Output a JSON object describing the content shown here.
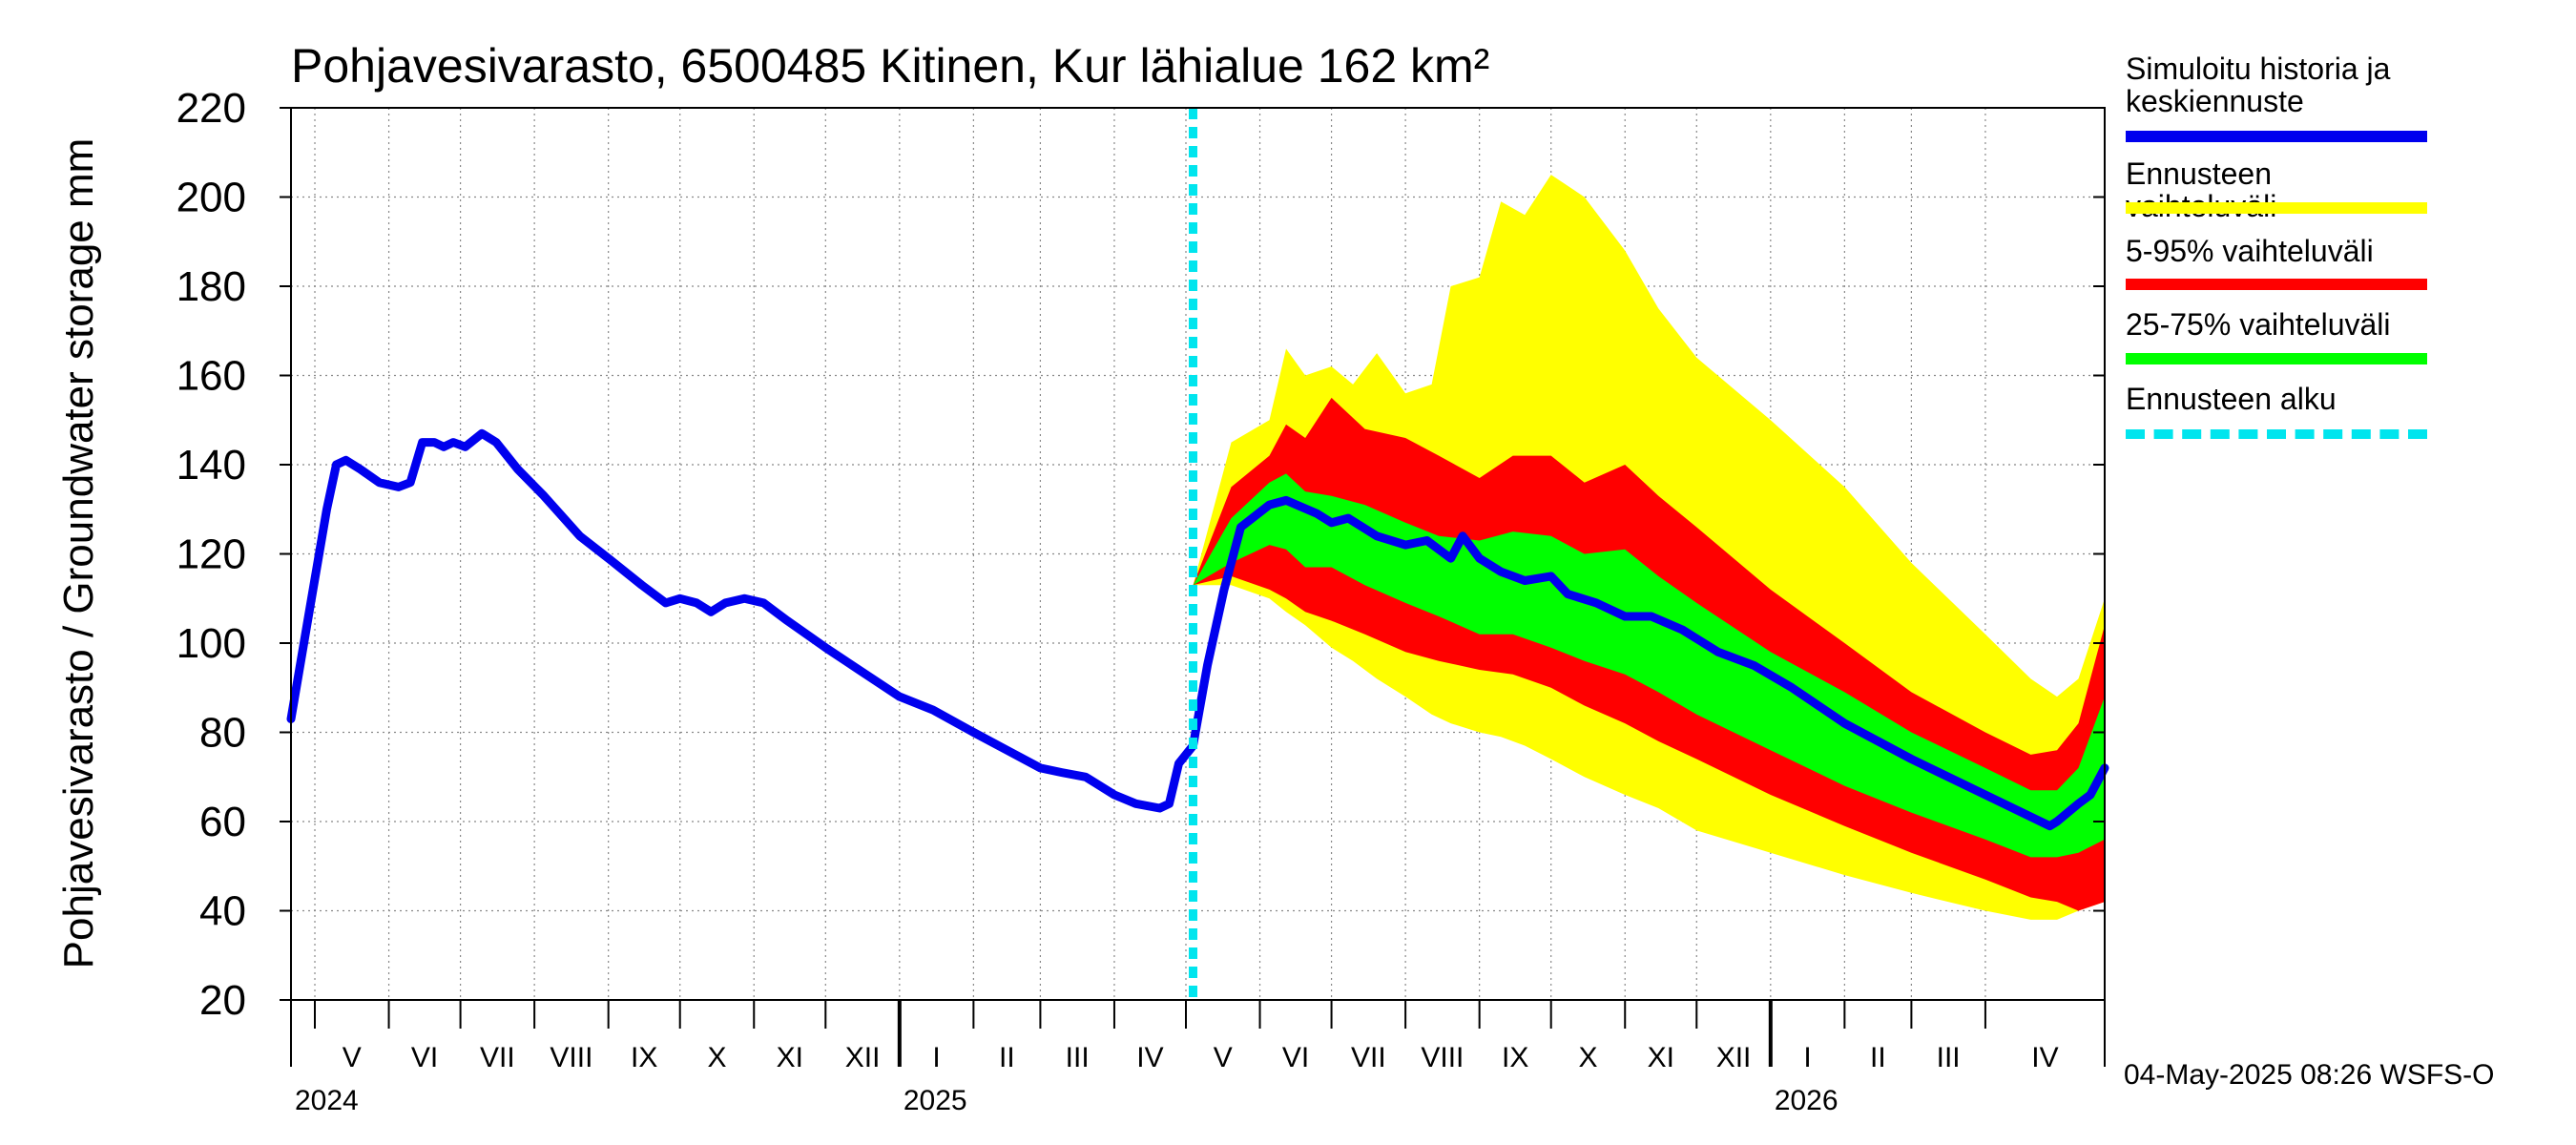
{
  "chart_data": {
    "type": "area",
    "title": "Pohjavesivarasto, 6500485 Kitinen, Kur lähialue 162 km²",
    "ylabel": "Pohjavesivarasto / Groundwater storage   mm",
    "ylim": [
      20,
      220
    ],
    "yticks": [
      20,
      40,
      60,
      80,
      100,
      120,
      140,
      160,
      180,
      200,
      220
    ],
    "grid": true,
    "legend_position": "right",
    "x_range": [
      "2024-04-21",
      "2026-05-21"
    ],
    "forecast_start": "2025-05-04",
    "month_labels": [
      {
        "label": "V",
        "date": "2024-05-01"
      },
      {
        "label": "VI",
        "date": "2024-06-01"
      },
      {
        "label": "VII",
        "date": "2024-07-01"
      },
      {
        "label": "VIII",
        "date": "2024-08-01"
      },
      {
        "label": "IX",
        "date": "2024-09-01"
      },
      {
        "label": "X",
        "date": "2024-10-01"
      },
      {
        "label": "XI",
        "date": "2024-11-01"
      },
      {
        "label": "XII",
        "date": "2024-12-01"
      },
      {
        "label": "I",
        "date": "2025-01-01"
      },
      {
        "label": "II",
        "date": "2025-02-01"
      },
      {
        "label": "III",
        "date": "2025-03-01"
      },
      {
        "label": "IV",
        "date": "2025-04-01"
      },
      {
        "label": "V",
        "date": "2025-05-01"
      },
      {
        "label": "VI",
        "date": "2025-06-01"
      },
      {
        "label": "VII",
        "date": "2025-07-01"
      },
      {
        "label": "VIII",
        "date": "2025-08-01"
      },
      {
        "label": "IX",
        "date": "2025-09-01"
      },
      {
        "label": "X",
        "date": "2025-10-01"
      },
      {
        "label": "XI",
        "date": "2025-11-01"
      },
      {
        "label": "XII",
        "date": "2025-12-01"
      },
      {
        "label": "I",
        "date": "2026-01-01"
      },
      {
        "label": "II",
        "date": "2026-02-01"
      },
      {
        "label": "III",
        "date": "2026-03-01"
      },
      {
        "label": "IV",
        "date": "2026-04-01"
      }
    ],
    "year_labels": [
      {
        "label": "2024",
        "date": "2024-04-21"
      },
      {
        "label": "2025",
        "date": "2025-01-01"
      },
      {
        "label": "2026",
        "date": "2026-01-01"
      }
    ],
    "series": [
      {
        "name": "Simuloitu historia ja keskiennuste",
        "color": "#0000ee",
        "points": [
          [
            "2024-04-21",
            83
          ],
          [
            "2024-04-28",
            105
          ],
          [
            "2024-05-06",
            130
          ],
          [
            "2024-05-10",
            140
          ],
          [
            "2024-05-14",
            141
          ],
          [
            "2024-05-20",
            139
          ],
          [
            "2024-05-28",
            136
          ],
          [
            "2024-06-05",
            135
          ],
          [
            "2024-06-10",
            136
          ],
          [
            "2024-06-15",
            145
          ],
          [
            "2024-06-20",
            145
          ],
          [
            "2024-06-24",
            144
          ],
          [
            "2024-06-28",
            145
          ],
          [
            "2024-07-03",
            144
          ],
          [
            "2024-07-10",
            147
          ],
          [
            "2024-07-16",
            145
          ],
          [
            "2024-07-25",
            139
          ],
          [
            "2024-08-05",
            133
          ],
          [
            "2024-08-20",
            124
          ],
          [
            "2024-09-01",
            119
          ],
          [
            "2024-09-15",
            113
          ],
          [
            "2024-09-25",
            109
          ],
          [
            "2024-10-01",
            110
          ],
          [
            "2024-10-08",
            109
          ],
          [
            "2024-10-14",
            107
          ],
          [
            "2024-10-20",
            109
          ],
          [
            "2024-10-28",
            110
          ],
          [
            "2024-11-05",
            109
          ],
          [
            "2024-11-15",
            105
          ],
          [
            "2024-12-01",
            99
          ],
          [
            "2024-12-15",
            94
          ],
          [
            "2025-01-01",
            88
          ],
          [
            "2025-01-15",
            85
          ],
          [
            "2025-02-01",
            80
          ],
          [
            "2025-02-15",
            76
          ],
          [
            "2025-03-01",
            72
          ],
          [
            "2025-03-10",
            71
          ],
          [
            "2025-03-20",
            70
          ],
          [
            "2025-04-01",
            66
          ],
          [
            "2025-04-10",
            64
          ],
          [
            "2025-04-20",
            63
          ],
          [
            "2025-04-24",
            64
          ],
          [
            "2025-04-28",
            73
          ],
          [
            "2025-05-04",
            77
          ],
          [
            "2025-05-10",
            95
          ],
          [
            "2025-05-17",
            112
          ],
          [
            "2025-05-24",
            126
          ],
          [
            "2025-06-05",
            131
          ],
          [
            "2025-06-12",
            132
          ],
          [
            "2025-06-25",
            129
          ],
          [
            "2025-07-01",
            127
          ],
          [
            "2025-07-08",
            128
          ],
          [
            "2025-07-20",
            124
          ],
          [
            "2025-08-01",
            122
          ],
          [
            "2025-08-10",
            123
          ],
          [
            "2025-08-20",
            119
          ],
          [
            "2025-08-25",
            124
          ],
          [
            "2025-09-01",
            119
          ],
          [
            "2025-09-10",
            116
          ],
          [
            "2025-09-20",
            114
          ],
          [
            "2025-10-01",
            115
          ],
          [
            "2025-10-08",
            111
          ],
          [
            "2025-10-20",
            109
          ],
          [
            "2025-11-01",
            106
          ],
          [
            "2025-11-12",
            106
          ],
          [
            "2025-11-25",
            103
          ],
          [
            "2025-12-10",
            98
          ],
          [
            "2025-12-25",
            95
          ],
          [
            "2026-01-10",
            90
          ],
          [
            "2026-02-01",
            82
          ],
          [
            "2026-03-01",
            74
          ],
          [
            "2026-04-01",
            66
          ],
          [
            "2026-04-28",
            59
          ],
          [
            "2026-05-01",
            60
          ],
          [
            "2026-05-10",
            64
          ],
          [
            "2026-05-15",
            66
          ],
          [
            "2026-05-21",
            72
          ]
        ]
      },
      {
        "name": "Ennusteen vaihteluväli",
        "color": "#ffff00",
        "x": [
          "2025-05-04",
          "2025-05-20",
          "2025-06-05",
          "2025-06-12",
          "2025-06-20",
          "2025-07-01",
          "2025-07-10",
          "2025-07-20",
          "2025-08-01",
          "2025-08-12",
          "2025-08-20",
          "2025-09-01",
          "2025-09-10",
          "2025-09-20",
          "2025-10-01",
          "2025-10-15",
          "2025-11-01",
          "2025-11-15",
          "2025-12-01",
          "2026-01-01",
          "2026-02-01",
          "2026-03-01",
          "2026-04-01",
          "2026-04-20",
          "2026-05-01",
          "2026-05-10",
          "2026-05-21"
        ],
        "upper": [
          113,
          145,
          150,
          166,
          160,
          162,
          158,
          165,
          156,
          158,
          180,
          182,
          199,
          196,
          205,
          200,
          188,
          175,
          164,
          150,
          135,
          118,
          102,
          92,
          88,
          92,
          110
        ],
        "lower": [
          113,
          113,
          110,
          107,
          104,
          99,
          96,
          92,
          88,
          84,
          82,
          80,
          79,
          77,
          74,
          70,
          66,
          63,
          58,
          53,
          48,
          44,
          40,
          38,
          38,
          40,
          42
        ]
      },
      {
        "name": "5-95% vaihteluväli",
        "color": "#ff0000",
        "x": [
          "2025-05-04",
          "2025-05-20",
          "2025-06-05",
          "2025-06-12",
          "2025-06-20",
          "2025-07-01",
          "2025-07-15",
          "2025-08-01",
          "2025-08-15",
          "2025-09-01",
          "2025-09-15",
          "2025-10-01",
          "2025-10-15",
          "2025-11-01",
          "2025-11-15",
          "2025-12-01",
          "2026-01-01",
          "2026-02-01",
          "2026-03-01",
          "2026-04-01",
          "2026-04-20",
          "2026-05-01",
          "2026-05-10",
          "2026-05-21"
        ],
        "upper": [
          113,
          135,
          142,
          149,
          146,
          155,
          148,
          146,
          142,
          137,
          142,
          142,
          136,
          140,
          133,
          126,
          112,
          100,
          89,
          80,
          75,
          76,
          82,
          104
        ],
        "lower": [
          113,
          115,
          112,
          110,
          107,
          105,
          102,
          98,
          96,
          94,
          93,
          90,
          86,
          82,
          78,
          74,
          66,
          59,
          53,
          47,
          43,
          42,
          40,
          42
        ]
      },
      {
        "name": "25-75% vaihteluväli",
        "color": "#00ff00",
        "x": [
          "2025-05-04",
          "2025-05-20",
          "2025-06-05",
          "2025-06-12",
          "2025-06-20",
          "2025-07-01",
          "2025-07-15",
          "2025-08-01",
          "2025-08-15",
          "2025-09-01",
          "2025-09-15",
          "2025-10-01",
          "2025-10-15",
          "2025-11-01",
          "2025-11-15",
          "2025-12-01",
          "2026-01-01",
          "2026-02-01",
          "2026-03-01",
          "2026-04-01",
          "2026-04-20",
          "2026-05-01",
          "2026-05-10",
          "2026-05-21"
        ],
        "upper": [
          113,
          128,
          136,
          138,
          134,
          133,
          131,
          127,
          124,
          123,
          125,
          124,
          120,
          121,
          115,
          109,
          98,
          89,
          80,
          72,
          67,
          67,
          72,
          88
        ],
        "lower": [
          113,
          118,
          122,
          121,
          117,
          117,
          113,
          109,
          106,
          102,
          102,
          99,
          96,
          93,
          89,
          84,
          76,
          68,
          62,
          56,
          52,
          52,
          53,
          56
        ]
      }
    ],
    "legend": [
      {
        "label": "Simuloitu historia ja\nkeskiennuste",
        "color": "#0000ee",
        "style": "line"
      },
      {
        "label": "Ennusteen vaihteluväli",
        "color": "#ffff00",
        "style": "band"
      },
      {
        "label": "5-95% vaihteluväli",
        "color": "#ff0000",
        "style": "band"
      },
      {
        "label": "25-75% vaihteluväli",
        "color": "#00ff00",
        "style": "band"
      },
      {
        "label": "Ennusteen alku",
        "color": "#00e5ee",
        "style": "dashed"
      }
    ]
  },
  "footer": {
    "stamp": "04-May-2025 08:26 WSFS-O"
  }
}
